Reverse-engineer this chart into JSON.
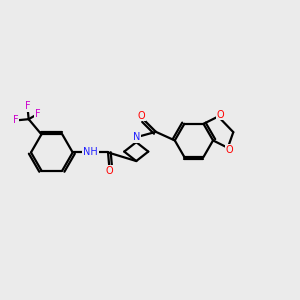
{
  "background_color": "#ebebeb",
  "bond_color": "#000000",
  "bond_width": 1.6,
  "atom_colors": {
    "C": "#000000",
    "N": "#2020ff",
    "O": "#ff0000",
    "F": "#cc00cc",
    "H": "#808080"
  },
  "figsize": [
    3.0,
    3.0
  ],
  "dpi": 100,
  "xlim": [
    0,
    12
  ],
  "ylim": [
    0,
    12
  ]
}
